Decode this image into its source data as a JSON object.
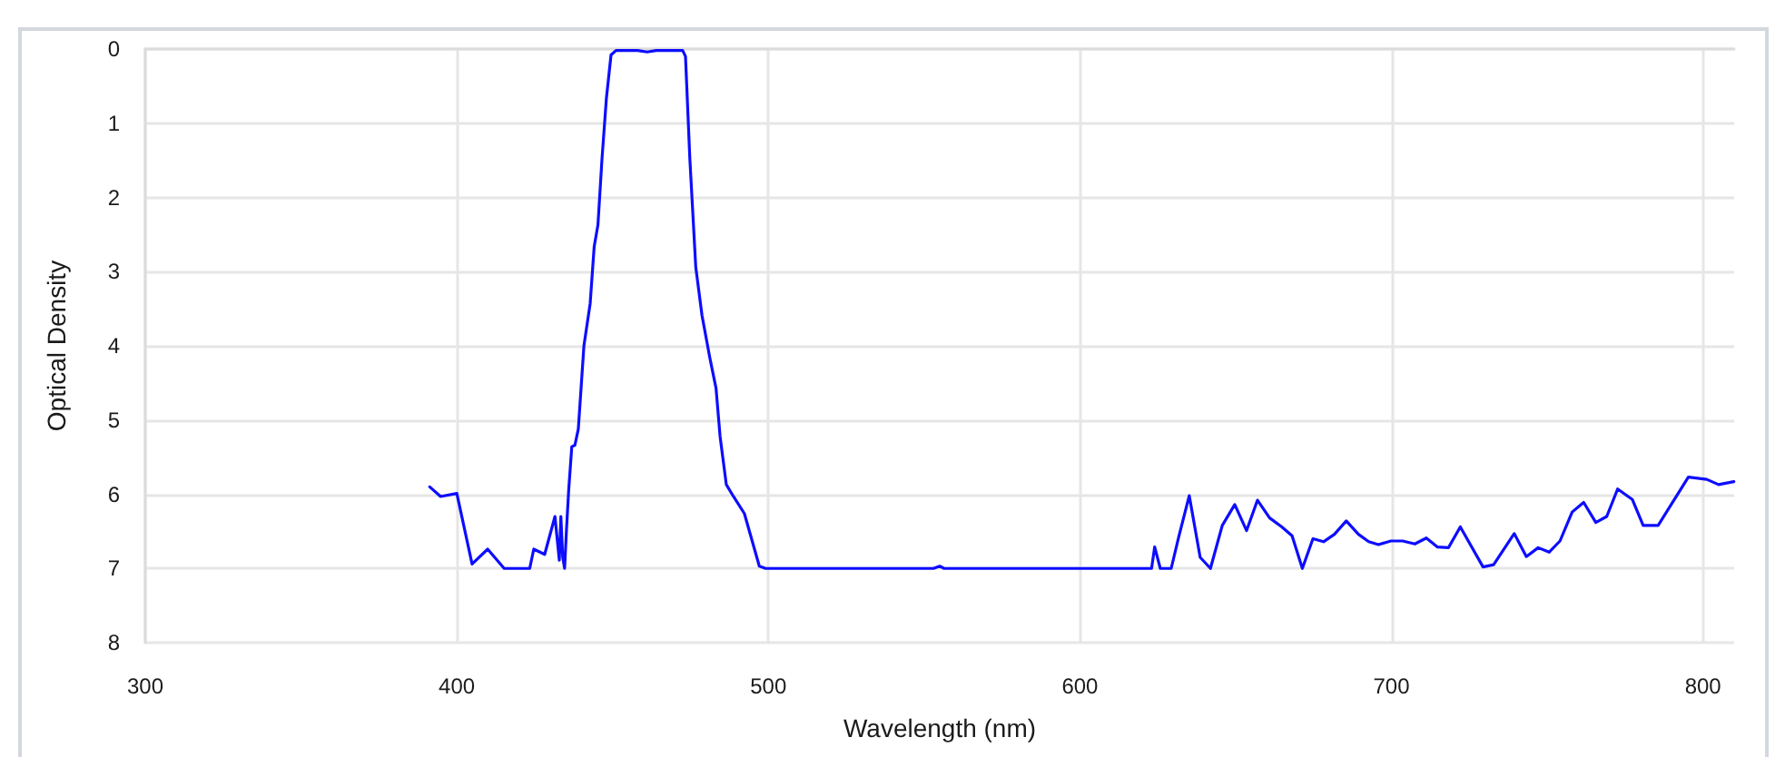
{
  "chart_data": {
    "type": "line",
    "xlabel": "Wavelength (nm)",
    "ylabel": "Optical Density",
    "x": [
      391.3,
      394.8,
      400.0,
      404.9,
      409.9,
      415.2,
      423.4,
      424.7,
      428.2,
      431.5,
      432.9,
      433.4,
      434.0,
      434.6,
      435.2,
      435.9,
      436.9,
      437.9,
      439.0,
      440.8,
      442.8,
      444.1,
      445.3,
      446.6,
      448.0,
      449.5,
      451.1,
      458.0,
      461.1,
      464.0,
      472.5,
      473.4,
      474.8,
      476.7,
      478.7,
      481.2,
      483.2,
      484.5,
      486.5,
      488.8,
      492.3,
      497.1,
      499.1,
      553.0,
      555.0,
      556.4,
      623.0,
      624.0,
      625.8,
      629.3,
      631.8,
      635.1,
      638.6,
      641.9,
      645.7,
      649.7,
      653.5,
      657.0,
      660.9,
      664.8,
      668.1,
      671.4,
      674.8,
      678.2,
      681.7,
      685.5,
      689.4,
      692.7,
      695.8,
      699.8,
      703.6,
      707.5,
      711.2,
      714.7,
      718.3,
      722.1,
      729.4,
      732.8,
      739.4,
      743.3,
      747.1,
      750.6,
      754.1,
      758.0,
      761.7,
      765.6,
      769.1,
      772.6,
      777.3,
      780.8,
      785.6,
      795.3,
      801.2,
      805.0,
      809.9
    ],
    "values": [
      5.9,
      6.03,
      5.99,
      6.94,
      6.74,
      7.0,
      7.0,
      6.74,
      6.81,
      6.3,
      6.89,
      6.3,
      6.85,
      7.0,
      6.48,
      5.95,
      5.36,
      5.34,
      5.12,
      4.0,
      3.43,
      2.66,
      2.37,
      1.48,
      0.67,
      0.08,
      0.02,
      0.02,
      0.04,
      0.02,
      0.02,
      0.1,
      1.48,
      2.94,
      3.59,
      4.16,
      4.57,
      5.22,
      5.87,
      6.03,
      6.26,
      6.97,
      7.0,
      7.0,
      6.97,
      7.0,
      7.0,
      6.71,
      7.0,
      7.0,
      6.56,
      6.02,
      6.85,
      7.0,
      6.42,
      6.14,
      6.49,
      6.08,
      6.32,
      6.44,
      6.56,
      7.0,
      6.6,
      6.64,
      6.54,
      6.36,
      6.54,
      6.64,
      6.68,
      6.63,
      6.63,
      6.67,
      6.59,
      6.71,
      6.72,
      6.44,
      6.98,
      6.95,
      6.53,
      6.84,
      6.72,
      6.78,
      6.63,
      6.24,
      6.11,
      6.38,
      6.3,
      5.93,
      6.07,
      6.42,
      6.42,
      5.77,
      5.8,
      5.87,
      5.83
    ],
    "color": "#0d0dff",
    "xlim": [
      300,
      810
    ],
    "xticks": [
      300,
      400,
      500,
      600,
      700,
      800
    ],
    "ylim": [
      8,
      0
    ],
    "yticks": [
      0,
      1,
      2,
      3,
      4,
      5,
      6,
      7,
      8
    ],
    "grid": true,
    "marker": "none",
    "line_style": "solid"
  }
}
